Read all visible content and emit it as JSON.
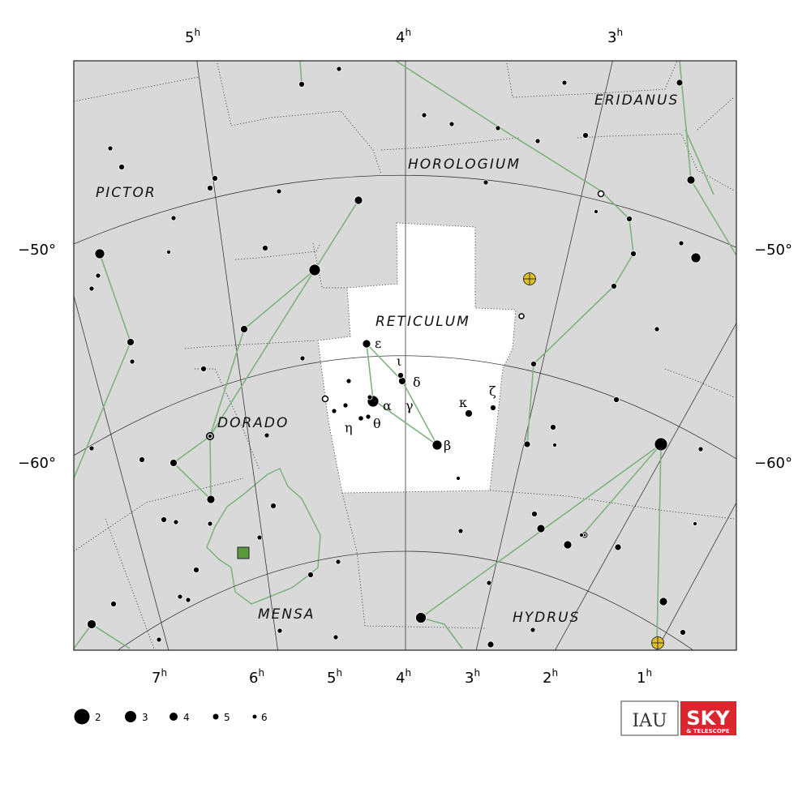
{
  "constellations": {
    "reticulum": "RETICULUM",
    "horologium": "HOROLOGIUM",
    "eridanus": "ERIDANUS",
    "pictor": "PICTOR",
    "dorado": "DORADO",
    "mensa": "MENSA",
    "hydrus": "HYDRUS"
  },
  "ra_labels_top": [
    {
      "h": "5",
      "u": "h"
    },
    {
      "h": "4",
      "u": "h"
    },
    {
      "h": "3",
      "u": "h"
    }
  ],
  "ra_labels_bottom": [
    {
      "h": "7",
      "u": "h"
    },
    {
      "h": "6",
      "u": "h"
    },
    {
      "h": "5",
      "u": "h"
    },
    {
      "h": "4",
      "u": "h"
    },
    {
      "h": "3",
      "u": "h"
    },
    {
      "h": "2",
      "u": "h"
    },
    {
      "h": "1",
      "u": "h"
    }
  ],
  "dec_labels": {
    "minus50": "−50°",
    "minus60": "−60°"
  },
  "greek_letters": {
    "alpha": "α",
    "beta": "β",
    "gamma": "γ",
    "delta": "δ",
    "epsilon": "ε",
    "zeta": "ζ",
    "eta": "η",
    "theta": "θ",
    "iota": "ι",
    "kappa": "κ"
  },
  "legend": {
    "mag2": "2",
    "mag3": "3",
    "mag4": "4",
    "mag5": "5",
    "mag6": "6"
  },
  "logos": {
    "iau": "IAU",
    "sky_main": "SKY",
    "sky_sub": "& TELESCOPE"
  },
  "colors": {
    "region_outside": "#d9d9d9",
    "region_highlight": "#ffffff",
    "figure_line": "#7fb27f",
    "open_cluster": "#e0c020",
    "nebula_marker": "#5a9a3a",
    "sky_logo": "#d9262f"
  }
}
